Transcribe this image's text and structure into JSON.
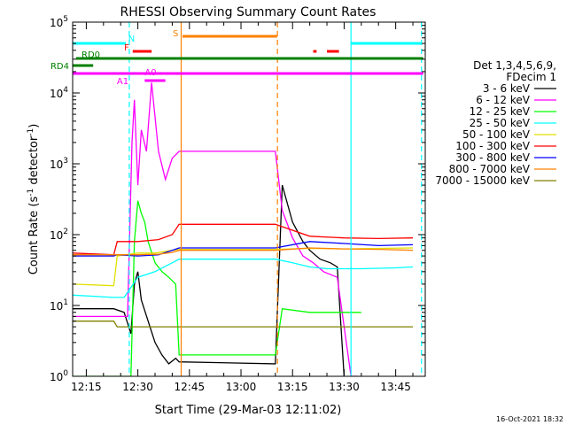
{
  "chart_data": {
    "type": "line",
    "title": "RHESSI Observing Summary Count Rates",
    "xlabel": "Start Time (29-Mar-03 12:11:02)",
    "ylabel_main": "Count Rate (s",
    "ylabel_sup1": "-1",
    "ylabel_mid": " detector",
    "ylabel_sup2": "-1",
    "ylabel_end": ")",
    "footer": "16-Oct-2021 18:32",
    "x_ticks": [
      "12:15",
      "12:30",
      "12:45",
      "13:00",
      "13:15",
      "13:30",
      "13:45"
    ],
    "x_tick_minutes": [
      735,
      750,
      765,
      780,
      795,
      810,
      825
    ],
    "xlim_minutes": [
      731.03,
      833.6
    ],
    "y_tick_base": "10",
    "y_tick_exps": [
      "0",
      "1",
      "2",
      "3",
      "4",
      "5"
    ],
    "ylim": [
      1,
      100000
    ],
    "yscale": "log",
    "legend": {
      "header_1": "Det 1,3,4,5,6,9,",
      "header_2": "FDecim 1",
      "placement": "right"
    },
    "series": [
      {
        "name": "3 - 6 keV",
        "color": "#000000",
        "x": [
          731,
          743,
          746,
          748,
          749,
          750,
          751,
          753,
          755,
          757,
          759,
          761,
          762,
          790,
          792,
          795,
          798,
          800,
          803,
          806,
          808,
          810
        ],
        "y": [
          9,
          9,
          8,
          4,
          20,
          30,
          12,
          6,
          3,
          2,
          1.5,
          1.8,
          1.6,
          1.5,
          500,
          150,
          80,
          60,
          45,
          40,
          35,
          1
        ]
      },
      {
        "name": "6 - 12 keV",
        "color": "#ff00ff",
        "x": [
          731,
          747,
          748.3,
          749,
          750,
          751,
          752.5,
          754,
          756,
          758,
          760,
          762,
          790,
          792,
          795,
          798,
          801,
          804,
          808,
          812,
          814
        ],
        "y": [
          7,
          7,
          2000,
          8000,
          500,
          3000,
          1500,
          14000,
          1500,
          600,
          1200,
          1500,
          1500,
          220,
          90,
          50,
          40,
          30,
          25,
          1,
          1
        ]
      },
      {
        "name": "12 - 25 keV",
        "color": "#00ff00",
        "x": [
          731,
          748,
          749,
          750,
          751,
          752,
          753,
          755,
          757,
          759,
          761,
          762,
          790,
          792,
          800,
          810,
          815
        ],
        "y": [
          1,
          1,
          80,
          300,
          200,
          150,
          80,
          40,
          30,
          25,
          20,
          2,
          2,
          9,
          8,
          8,
          8
        ]
      },
      {
        "name": "25 - 50 keV",
        "color": "#00ffff",
        "x": [
          731,
          743,
          746,
          750,
          755,
          760,
          762,
          790,
          795,
          800,
          805,
          810,
          815,
          825,
          830
        ],
        "y": [
          14,
          13,
          13,
          25,
          30,
          40,
          45,
          45,
          40,
          35,
          33,
          33,
          33,
          34,
          35
        ]
      },
      {
        "name": "50 - 100 keV",
        "color": "#e0e000",
        "x": [
          731,
          743,
          744,
          750,
          755,
          760,
          762,
          790,
          800,
          810,
          820,
          830
        ],
        "y": [
          20,
          19,
          50,
          55,
          55,
          60,
          62,
          62,
          64,
          63,
          64,
          65
        ]
      },
      {
        "name": "100 - 300 keV",
        "color": "#ff0000",
        "x": [
          731,
          743,
          744,
          750,
          756,
          760,
          762,
          790,
          800,
          810,
          820,
          830
        ],
        "y": [
          55,
          52,
          80,
          80,
          85,
          100,
          140,
          140,
          95,
          90,
          88,
          90
        ]
      },
      {
        "name": "300 - 800 keV",
        "color": "#0000ff",
        "x": [
          731,
          743,
          744,
          750,
          756,
          760,
          762,
          790,
          800,
          810,
          820,
          830
        ],
        "y": [
          50,
          50,
          52,
          50,
          52,
          60,
          65,
          65,
          80,
          75,
          70,
          72
        ]
      },
      {
        "name": "800 - 7000 keV",
        "color": "#ff8000",
        "x": [
          731,
          743,
          744,
          750,
          756,
          760,
          762,
          790,
          800,
          810,
          820,
          830
        ],
        "y": [
          52,
          52,
          52,
          52,
          53,
          56,
          60,
          60,
          65,
          63,
          62,
          60
        ]
      },
      {
        "name": "7000 - 15000 keV",
        "color": "#808000",
        "x": [
          731,
          743,
          744,
          750,
          756,
          760,
          762,
          790,
          800,
          810,
          820,
          830
        ],
        "y": [
          6,
          6,
          5,
          5,
          5,
          5,
          5,
          5,
          5,
          5,
          5,
          5
        ]
      }
    ],
    "annotations": {
      "vlines": [
        {
          "x": 747.5,
          "color": "#00ffff",
          "dash": true
        },
        {
          "x": 762.6,
          "color": "#ff8000",
          "dash": false
        },
        {
          "x": 790.6,
          "color": "#ff8000",
          "dash": true
        },
        {
          "x": 812.0,
          "color": "#00ffff",
          "dash": false
        },
        {
          "x": 832.5,
          "color": "#00ffff",
          "dash": true
        }
      ],
      "bars": [
        {
          "label": "N",
          "color": "#00ffff",
          "x0": 731.0,
          "x1": 746.5,
          "level": "N"
        },
        {
          "label": "",
          "color": "#00ffff",
          "x0": 812.0,
          "x1": 832.5,
          "level": "N"
        },
        {
          "label": "S",
          "color": "#ff8000",
          "x0": 763.0,
          "x1": 790.5,
          "level": "S"
        },
        {
          "label": "F",
          "color": "#ff0000",
          "x0": 748.5,
          "x1": 754.0,
          "level": "F"
        },
        {
          "label": "",
          "color": "#ff0000",
          "x0": 801.0,
          "x1": 802.0,
          "level": "F"
        },
        {
          "label": "",
          "color": "#ff0000",
          "x0": 805.0,
          "x1": 808.5,
          "level": "F"
        },
        {
          "label": "RD0",
          "color": "#008000",
          "x0": 732.0,
          "x1": 833.0,
          "level": "RD0"
        },
        {
          "label": "RD4",
          "color": "#008000",
          "x0": 731.0,
          "x1": 737.0,
          "level": "RD4"
        },
        {
          "label": "A1",
          "color": "#ff00ff",
          "x0": 731.0,
          "x1": 833.0,
          "level": "A1"
        },
        {
          "label": "A0",
          "color": "#ff00ff",
          "x0": 752.0,
          "x1": 758.0,
          "level": "A0"
        }
      ]
    }
  }
}
